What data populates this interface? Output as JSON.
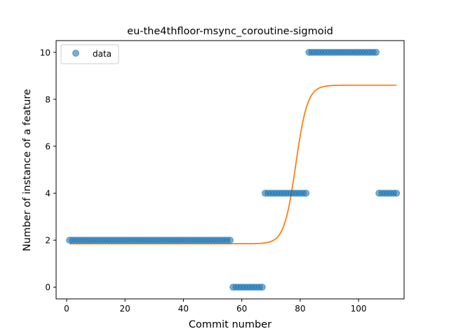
{
  "chart_data": {
    "type": "scatter",
    "title": "eu-the4thfloor-msync_coroutine-sigmoid",
    "xlabel": "Commit number",
    "ylabel": "Number of instance of a feature",
    "xlim": [
      -3.6,
      115.6
    ],
    "ylim": [
      -0.5,
      10.5
    ],
    "x_ticks": [
      0,
      20,
      40,
      60,
      80,
      100
    ],
    "y_ticks": [
      0,
      2,
      4,
      6,
      8,
      10
    ],
    "x_tick_labels": [
      "0",
      "20",
      "40",
      "60",
      "80",
      "100"
    ],
    "y_tick_labels": [
      "0",
      "2",
      "4",
      "6",
      "8",
      "10"
    ],
    "legend": {
      "placement": "top-left",
      "entries": [
        "data"
      ]
    },
    "grid": false,
    "series": [
      {
        "name": "data",
        "kind": "points",
        "color": "#1f77b4",
        "segments": [
          {
            "x_from": 1,
            "x_to": 56,
            "y": 2
          },
          {
            "x_from": 57,
            "x_to": 67,
            "y": 0
          },
          {
            "x_from": 68,
            "x_to": 82,
            "y": 4
          },
          {
            "x_from": 83,
            "x_to": 106,
            "y": 10
          },
          {
            "x_from": 107,
            "x_to": 113,
            "y": 4
          }
        ]
      },
      {
        "kind": "sigmoid-curve",
        "color": "#ff7f0e",
        "lower": 1.85,
        "upper": 8.6,
        "midpoint": 78.5,
        "rate": 0.5,
        "x_from": 1,
        "x_to": 113
      }
    ]
  }
}
